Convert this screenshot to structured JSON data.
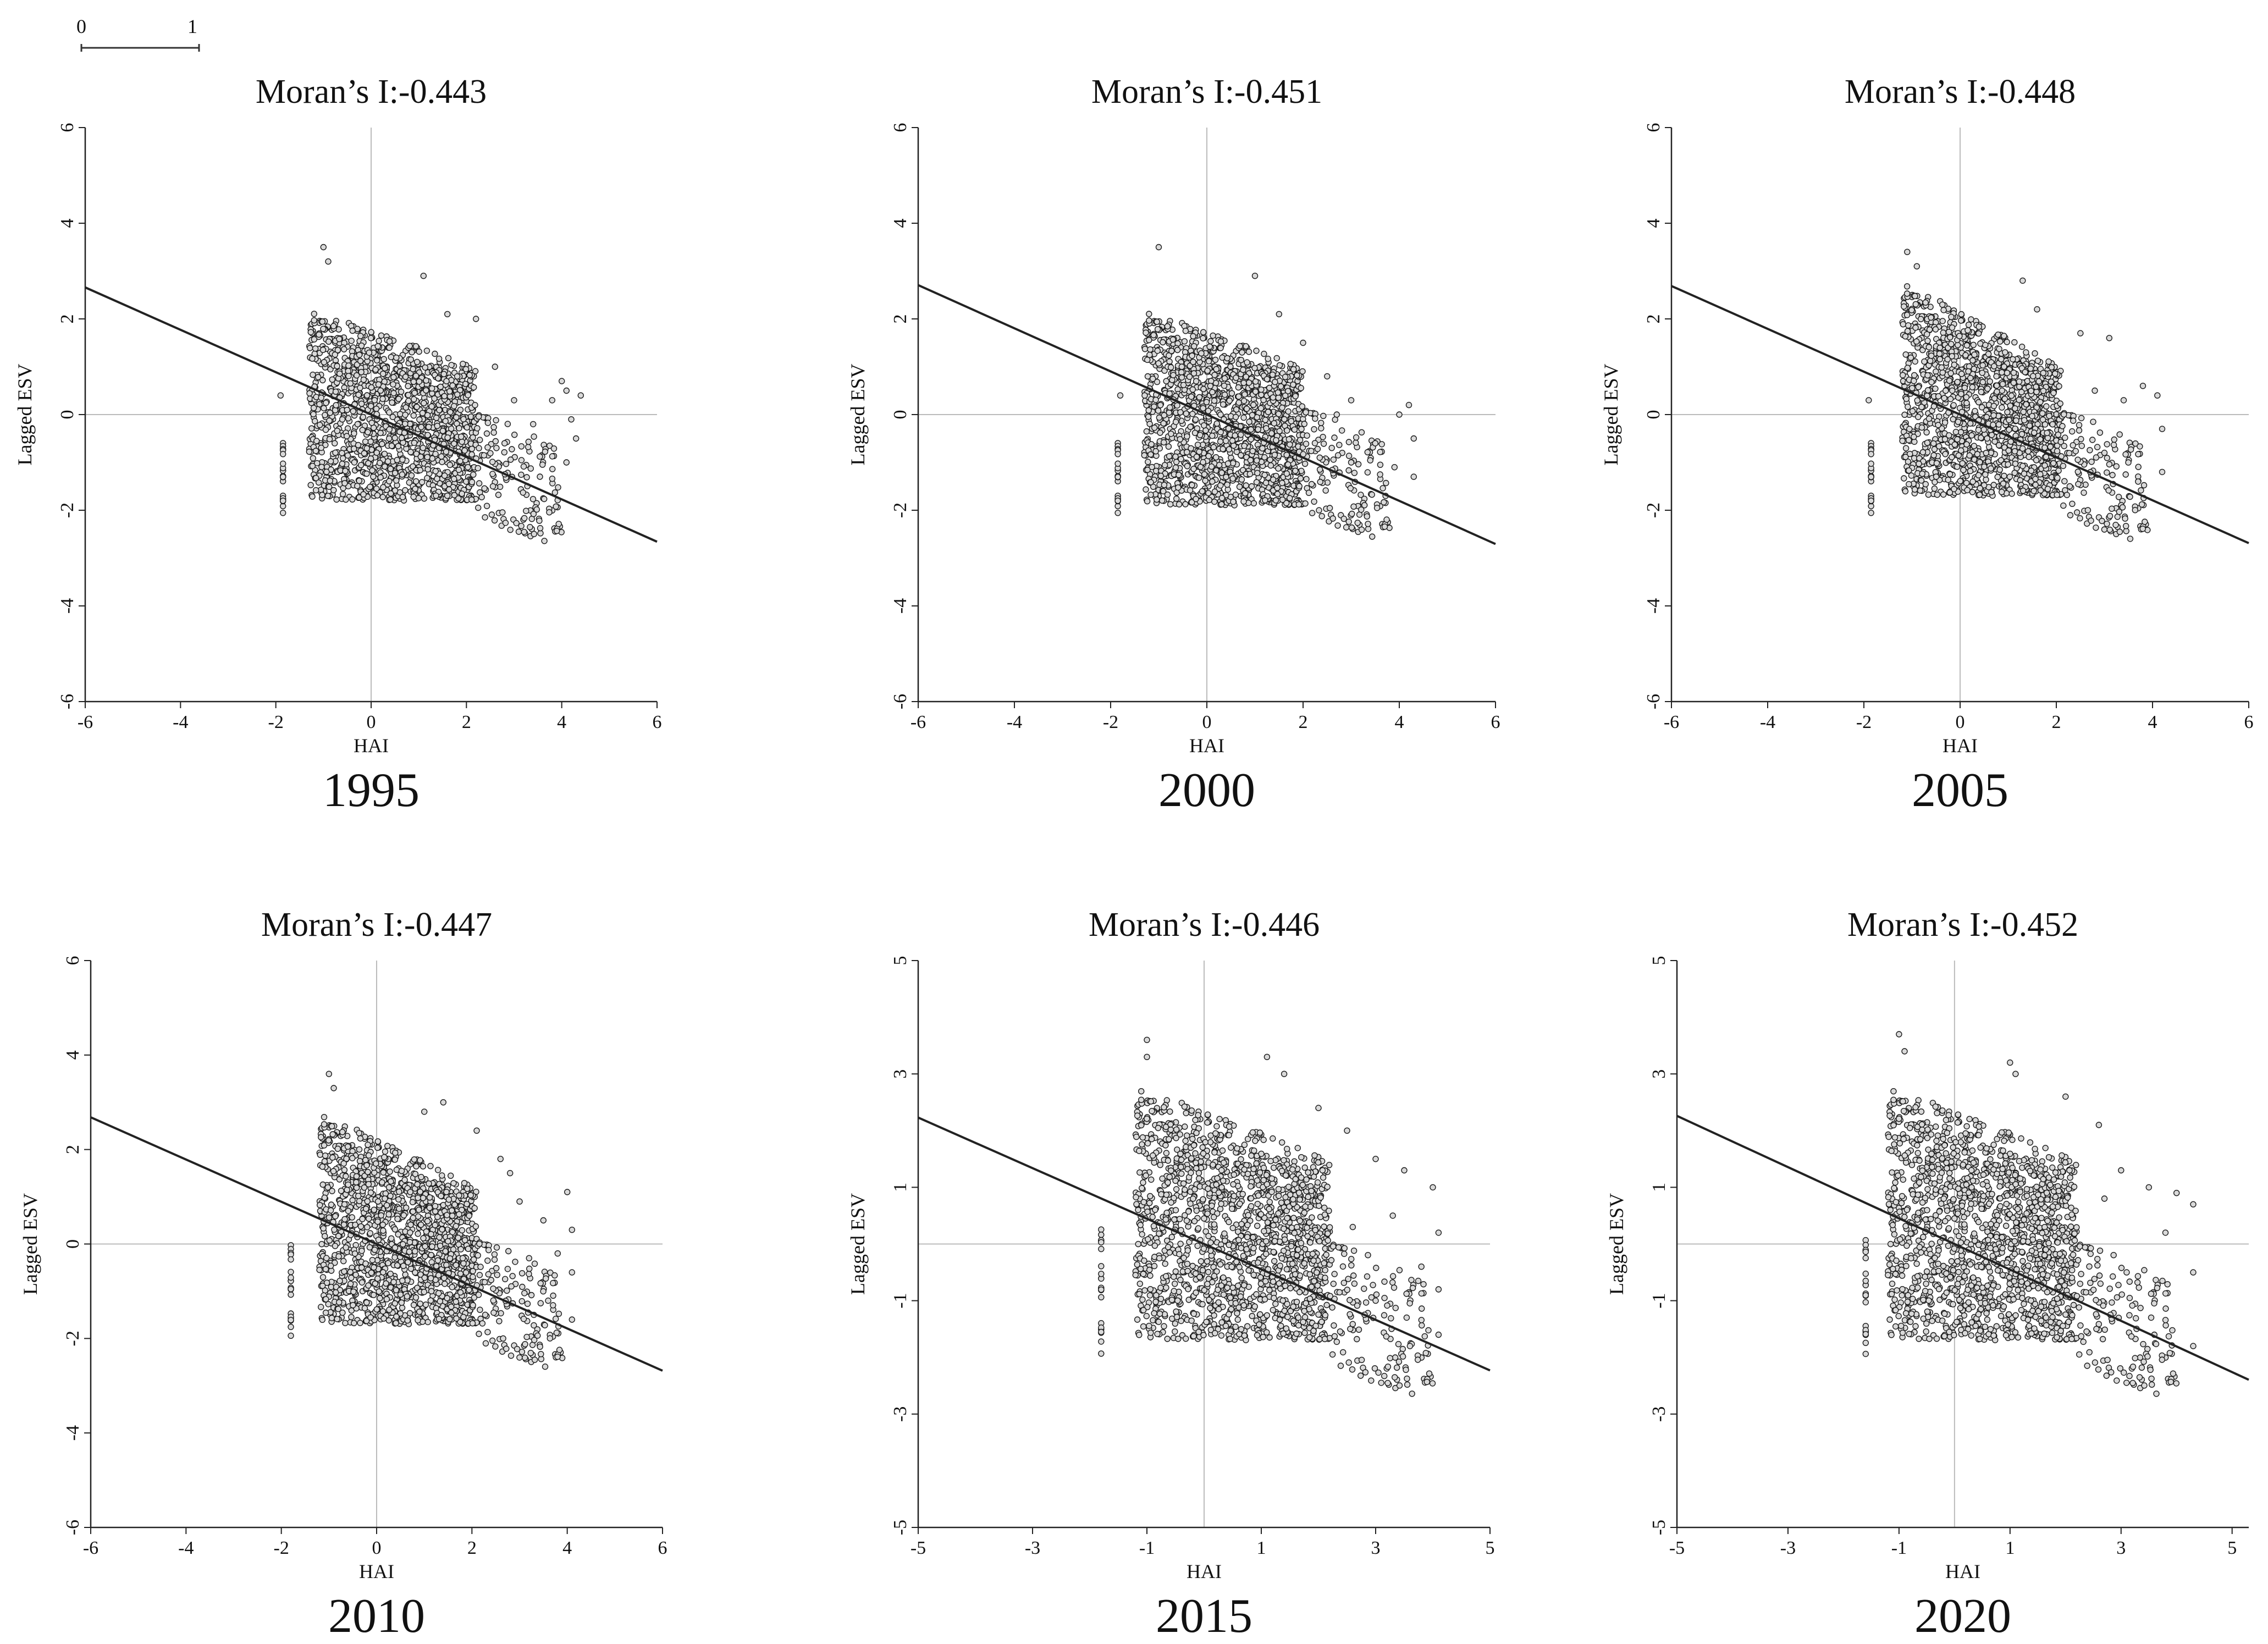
{
  "scale_bar": {
    "start_label": "0",
    "end_label": "1"
  },
  "chart_data": [
    {
      "type": "scatter",
      "title": "Moran’s I:-0.443",
      "year": "1995",
      "xlabel": "HAI",
      "ylabel": "Lagged ESV",
      "xlim": [
        -6,
        6
      ],
      "ylim": [
        -6,
        6
      ],
      "xticks": [
        -6,
        -4,
        -2,
        0,
        2,
        4,
        6
      ],
      "yticks": [
        -6,
        -4,
        -2,
        0,
        2,
        4,
        6
      ],
      "regression": {
        "slope": -0.443,
        "intercept": 0
      },
      "cloud": {
        "x_range": [
          -1.3,
          2.2
        ],
        "y_low": -1.8,
        "y_high_start": 2.2,
        "y_high_end": 1.0,
        "seed": 11
      },
      "outlier_column": {
        "x": -1.85,
        "y_range": [
          -2.1,
          -0.5
        ]
      },
      "extra_points": [
        [
          -1.9,
          0.4
        ],
        [
          -1.0,
          3.5
        ],
        [
          -0.9,
          3.2
        ],
        [
          1.1,
          2.9
        ],
        [
          1.6,
          2.1
        ],
        [
          2.2,
          2.0
        ],
        [
          2.6,
          1.0
        ],
        [
          3.0,
          0.3
        ],
        [
          3.8,
          0.3
        ],
        [
          4.0,
          0.7
        ],
        [
          4.1,
          0.5
        ],
        [
          4.2,
          -0.1
        ],
        [
          4.3,
          -0.5
        ],
        [
          4.4,
          0.4
        ],
        [
          4.1,
          -1.0
        ],
        [
          2.8,
          -0.6
        ],
        [
          3.4,
          -0.2
        ]
      ]
    },
    {
      "type": "scatter",
      "title": "Moran’s I:-0.451",
      "year": "2000",
      "xlabel": "HAI",
      "ylabel": "Lagged ESV",
      "xlim": [
        -6,
        6
      ],
      "ylim": [
        -6,
        6
      ],
      "xticks": [
        -6,
        -4,
        -2,
        0,
        2,
        4,
        6
      ],
      "yticks": [
        -6,
        -4,
        -2,
        0,
        2,
        4,
        6
      ],
      "regression": {
        "slope": -0.451,
        "intercept": 0
      },
      "cloud": {
        "x_range": [
          -1.3,
          2.0
        ],
        "y_low": -1.9,
        "y_high_start": 2.2,
        "y_high_end": 1.0,
        "seed": 23
      },
      "outlier_column": {
        "x": -1.85,
        "y_range": [
          -2.1,
          -0.5
        ]
      },
      "extra_points": [
        [
          -1.8,
          0.4
        ],
        [
          -1.0,
          3.5
        ],
        [
          1.0,
          2.9
        ],
        [
          1.5,
          2.1
        ],
        [
          2.0,
          1.5
        ],
        [
          2.5,
          0.8
        ],
        [
          3.0,
          0.3
        ],
        [
          3.5,
          -0.6
        ],
        [
          4.0,
          0.0
        ],
        [
          4.2,
          0.2
        ],
        [
          4.3,
          -0.5
        ],
        [
          4.3,
          -1.3
        ],
        [
          3.9,
          -1.1
        ],
        [
          3.0,
          -1.0
        ],
        [
          2.7,
          0.0
        ]
      ]
    },
    {
      "type": "scatter",
      "title": "Moran’s I:-0.448",
      "year": "2005",
      "xlabel": "HAI",
      "ylabel": "Lagged ESV",
      "xlim": [
        -6,
        6
      ],
      "ylim": [
        -6,
        6
      ],
      "xticks": [
        -6,
        -4,
        -2,
        0,
        2,
        4,
        6
      ],
      "yticks": [
        -6,
        -4,
        -2,
        0,
        2,
        4,
        6
      ],
      "regression": {
        "slope": -0.448,
        "intercept": 0
      },
      "cloud": {
        "x_range": [
          -1.2,
          2.1
        ],
        "y_low": -1.7,
        "y_high_start": 2.8,
        "y_high_end": 1.0,
        "seed": 37
      },
      "outlier_column": {
        "x": -1.85,
        "y_range": [
          -2.1,
          -0.5
        ]
      },
      "extra_points": [
        [
          -1.9,
          0.3
        ],
        [
          -1.1,
          3.4
        ],
        [
          -0.9,
          3.1
        ],
        [
          1.3,
          2.8
        ],
        [
          1.6,
          2.2
        ],
        [
          2.5,
          1.7
        ],
        [
          3.1,
          1.6
        ],
        [
          2.8,
          0.5
        ],
        [
          3.4,
          0.3
        ],
        [
          3.8,
          0.6
        ],
        [
          4.1,
          0.4
        ],
        [
          4.2,
          -0.3
        ],
        [
          4.2,
          -1.2
        ],
        [
          3.7,
          -1.4
        ],
        [
          3.0,
          -0.8
        ]
      ]
    },
    {
      "type": "scatter",
      "title": "Moran’s I:-0.447",
      "year": "2010",
      "xlabel": "HAI",
      "ylabel": "Lagged ESV",
      "xlim": [
        -6,
        6
      ],
      "ylim": [
        -6,
        6
      ],
      "xticks": [
        -6,
        -4,
        -2,
        0,
        2,
        4,
        6
      ],
      "yticks": [
        -6,
        -4,
        -2,
        0,
        2,
        4,
        6
      ],
      "regression": {
        "slope": -0.447,
        "intercept": 0
      },
      "cloud": {
        "x_range": [
          -1.2,
          2.1
        ],
        "y_low": -1.7,
        "y_high_start": 2.8,
        "y_high_end": 1.2,
        "seed": 51
      },
      "outlier_column": {
        "x": -1.8,
        "y_range": [
          -2.0,
          0.1
        ]
      },
      "extra_points": [
        [
          -1.0,
          3.6
        ],
        [
          -0.9,
          3.3
        ],
        [
          1.4,
          3.0
        ],
        [
          1.0,
          2.8
        ],
        [
          2.1,
          2.4
        ],
        [
          2.6,
          1.8
        ],
        [
          3.0,
          0.9
        ],
        [
          3.5,
          0.5
        ],
        [
          4.0,
          1.1
        ],
        [
          4.1,
          0.3
        ],
        [
          4.1,
          -0.6
        ],
        [
          4.1,
          -1.6
        ],
        [
          3.6,
          -1.2
        ],
        [
          3.2,
          -0.3
        ],
        [
          2.8,
          1.5
        ],
        [
          3.3,
          -1.5
        ],
        [
          3.8,
          -0.2
        ]
      ]
    },
    {
      "type": "scatter",
      "title": "Moran’s I:-0.446",
      "year": "2015",
      "xlabel": "HAI",
      "ylabel": "Lagged ESV",
      "xlim": [
        -5,
        5
      ],
      "ylim": [
        -5,
        5
      ],
      "xticks": [
        -5,
        -3,
        -1,
        1,
        3,
        5
      ],
      "yticks": [
        -5,
        -3,
        -1,
        1,
        3,
        5
      ],
      "regression": {
        "slope": -0.446,
        "intercept": 0
      },
      "cloud": {
        "x_range": [
          -1.2,
          2.2
        ],
        "y_low": -1.7,
        "y_high_start": 2.8,
        "y_high_end": 1.5,
        "seed": 67
      },
      "outlier_column": {
        "x": -1.8,
        "y_range": [
          -2.0,
          0.4
        ]
      },
      "extra_points": [
        [
          -1.0,
          3.6
        ],
        [
          -1.0,
          3.3
        ],
        [
          1.1,
          3.3
        ],
        [
          1.4,
          3.0
        ],
        [
          2.0,
          2.4
        ],
        [
          2.5,
          2.0
        ],
        [
          3.0,
          1.5
        ],
        [
          3.5,
          1.3
        ],
        [
          4.0,
          1.0
        ],
        [
          4.1,
          0.2
        ],
        [
          4.1,
          -0.8
        ],
        [
          4.1,
          -1.6
        ],
        [
          3.6,
          -1.8
        ],
        [
          3.0,
          -1.0
        ],
        [
          2.6,
          0.3
        ],
        [
          3.3,
          0.5
        ],
        [
          3.8,
          -0.4
        ]
      ]
    },
    {
      "type": "scatter",
      "title": "Moran’s I:-0.452",
      "year": "2020",
      "xlabel": "HAI",
      "ylabel": "Lagged ESV",
      "xlim": [
        -5,
        5.3
      ],
      "ylim": [
        -5,
        5
      ],
      "xticks": [
        -5,
        -3,
        -1,
        1,
        3,
        5
      ],
      "yticks": [
        -5,
        -3,
        -1,
        1,
        3,
        5
      ],
      "regression": {
        "slope": -0.452,
        "intercept": 0
      },
      "cloud": {
        "x_range": [
          -1.2,
          2.2
        ],
        "y_low": -1.7,
        "y_high_start": 2.8,
        "y_high_end": 1.5,
        "seed": 83
      },
      "outlier_column": {
        "x": -1.6,
        "y_range": [
          -2.0,
          0.2
        ]
      },
      "extra_points": [
        [
          -1.0,
          3.7
        ],
        [
          -0.9,
          3.4
        ],
        [
          1.0,
          3.2
        ],
        [
          1.1,
          3.0
        ],
        [
          2.0,
          2.6
        ],
        [
          2.6,
          2.1
        ],
        [
          3.0,
          1.3
        ],
        [
          3.5,
          1.0
        ],
        [
          4.0,
          0.9
        ],
        [
          4.3,
          0.7
        ],
        [
          4.3,
          -0.5
        ],
        [
          4.3,
          -1.8
        ],
        [
          3.6,
          -1.6
        ],
        [
          3.1,
          -0.5
        ],
        [
          2.7,
          0.8
        ],
        [
          3.8,
          0.2
        ]
      ]
    }
  ]
}
